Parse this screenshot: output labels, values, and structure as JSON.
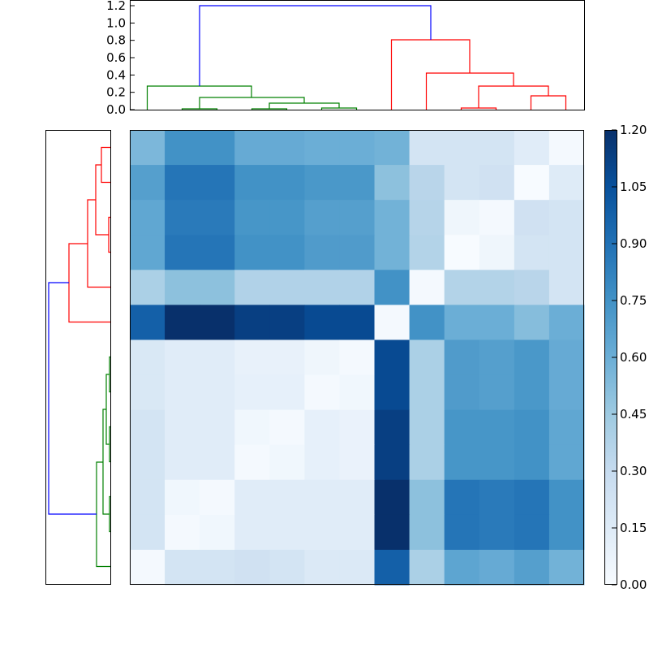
{
  "chart_data": {
    "type": "heatmap",
    "title": "",
    "colormap": "Blues",
    "vlim": [
      0.0,
      1.2
    ],
    "rows": 13,
    "cols": 13,
    "matrix": [
      [
        0.55,
        0.75,
        0.75,
        0.62,
        0.62,
        0.6,
        0.6,
        0.58,
        0.22,
        0.22,
        0.22,
        0.14,
        0.02
      ],
      [
        0.68,
        0.88,
        0.88,
        0.75,
        0.75,
        0.72,
        0.72,
        0.5,
        0.35,
        0.22,
        0.24,
        0.0,
        0.15
      ],
      [
        0.64,
        0.86,
        0.86,
        0.73,
        0.73,
        0.68,
        0.68,
        0.58,
        0.36,
        0.05,
        0.02,
        0.24,
        0.22
      ],
      [
        0.64,
        0.88,
        0.88,
        0.75,
        0.75,
        0.7,
        0.7,
        0.58,
        0.37,
        0.0,
        0.05,
        0.22,
        0.22
      ],
      [
        0.4,
        0.5,
        0.5,
        0.38,
        0.38,
        0.38,
        0.38,
        0.75,
        0.02,
        0.37,
        0.37,
        0.35,
        0.22
      ],
      [
        0.98,
        1.2,
        1.2,
        1.13,
        1.13,
        1.08,
        1.08,
        0.02,
        0.75,
        0.6,
        0.6,
        0.52,
        0.6
      ],
      [
        0.18,
        0.14,
        0.14,
        0.09,
        0.09,
        0.05,
        0.02,
        1.08,
        0.4,
        0.7,
        0.68,
        0.72,
        0.62
      ],
      [
        0.18,
        0.14,
        0.14,
        0.1,
        0.1,
        0.02,
        0.04,
        1.08,
        0.4,
        0.7,
        0.68,
        0.72,
        0.62
      ],
      [
        0.22,
        0.14,
        0.14,
        0.04,
        0.02,
        0.1,
        0.08,
        1.13,
        0.4,
        0.73,
        0.73,
        0.75,
        0.64
      ],
      [
        0.22,
        0.14,
        0.14,
        0.02,
        0.04,
        0.1,
        0.08,
        1.13,
        0.4,
        0.73,
        0.73,
        0.75,
        0.64
      ],
      [
        0.22,
        0.04,
        0.02,
        0.14,
        0.14,
        0.14,
        0.14,
        1.2,
        0.5,
        0.88,
        0.86,
        0.88,
        0.75
      ],
      [
        0.22,
        0.02,
        0.04,
        0.14,
        0.14,
        0.14,
        0.14,
        1.2,
        0.5,
        0.88,
        0.86,
        0.88,
        0.75
      ],
      [
        0.02,
        0.22,
        0.22,
        0.24,
        0.22,
        0.17,
        0.17,
        0.98,
        0.4,
        0.65,
        0.62,
        0.68,
        0.58
      ]
    ],
    "colorbar_ticks": [
      "0.00",
      "0.15",
      "0.30",
      "0.45",
      "0.60",
      "0.75",
      "0.90",
      "1.05",
      "1.20"
    ],
    "top_dendrogram": {
      "ylim": [
        0.0,
        1.2
      ],
      "yticks": [
        "0.0",
        "0.2",
        "0.4",
        "0.6",
        "0.8",
        "1.0",
        "1.2"
      ],
      "colors": {
        "cluster_a": "#008000",
        "cluster_b": "#ff0000",
        "root": "#0000ff"
      }
    },
    "left_dendrogram": {
      "colors": {
        "cluster_a": "#ff0000",
        "cluster_b": "#008000",
        "root": "#0000ff"
      }
    }
  }
}
